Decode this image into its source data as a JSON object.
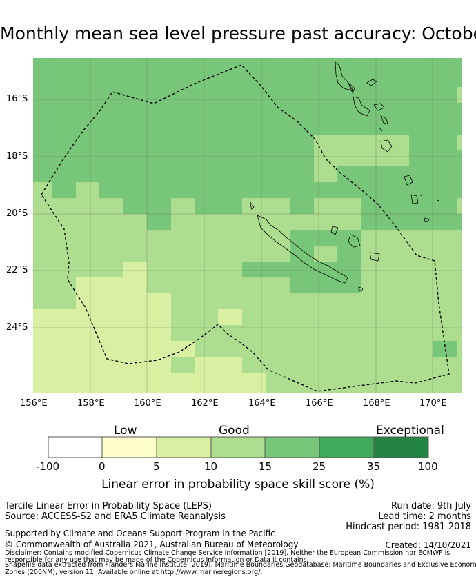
{
  "title": "Monthly mean sea level pressure past accuracy: October - January",
  "map": {
    "x_ticks": [
      "156°E",
      "158°E",
      "160°E",
      "162°E",
      "164°E",
      "166°E",
      "168°E",
      "170°E"
    ],
    "y_ticks": [
      "16°S",
      "18°S",
      "20°S",
      "22°S",
      "24°S"
    ],
    "colors": {
      "c0": "#ffffff",
      "c1": "#ffffcc",
      "c2": "#d9f0a3",
      "c3": "#addd8e",
      "c4": "#78c679",
      "c5": "#41ab5d",
      "c6": "#238443"
    }
  },
  "colorbar": {
    "category_labels": [
      "Low",
      "Good",
      "Exceptional"
    ],
    "ticks": [
      "-100",
      "0",
      "5",
      "10",
      "15",
      "25",
      "35",
      "100"
    ],
    "label": "Linear error in probability space skill score (%)"
  },
  "info": {
    "left": [
      "Tercile Linear Error in Probability Space (LEPS)",
      "Source: ACCESS-S2 and ERA5 Climate Reanalysis"
    ],
    "right": [
      "Run date: 9th July",
      "Lead time: 2 months",
      "Hindcast period: 1981-2018"
    ],
    "support": "Supported by Climate and Oceans Support Program in the Pacific",
    "copyright": "© Commonwealth of Australia 2021, Australian Bureau of Meteorology",
    "created": "Created: 14/10/2021",
    "disclaimer1": "Disclaimer: Contains modified Copernicus Climate Change Service Information [2019]. Neither the European Commission nor ECMWF is",
    "disclaimer2": "responsible for any use that may be made of the Copernicus Information or Data it contains.",
    "shapefile1": "Shapefile data extracted from Flanders Marine Institute (2019). Maritime Boundaries Geodatabase: Maritime Boundaries and Exclusive Economic",
    "shapefile2": "Zones (200NM), version 11. Available online at http://www.marineregions.org/."
  }
}
